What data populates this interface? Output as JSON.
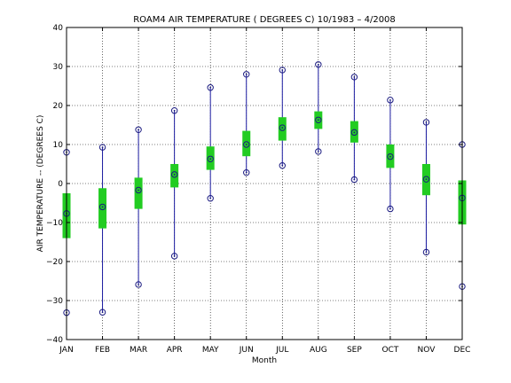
{
  "chart_data": {
    "type": "boxplot",
    "title": "ROAM4  AIR TEMPERATURE ( DEGREES C) 10/1983 – 4/2008",
    "xlabel": "Month",
    "ylabel": "AIR TEMPERATURE -- (DEGREES C)",
    "ylim": [
      -40,
      40
    ],
    "yticks": [
      -40,
      -30,
      -20,
      -10,
      0,
      10,
      20,
      30,
      40
    ],
    "ytick_labels": [
      "−40",
      "−30",
      "−20",
      "−10",
      "0",
      "10",
      "20",
      "30",
      "40"
    ],
    "grid": true,
    "categories": [
      "JAN",
      "FEB",
      "MAR",
      "APR",
      "MAY",
      "JUN",
      "JUL",
      "AUG",
      "SEP",
      "OCT",
      "NOV",
      "DEC"
    ],
    "max": [
      8.0,
      9.3,
      13.8,
      18.7,
      24.6,
      28.0,
      29.1,
      30.5,
      27.3,
      21.4,
      15.7,
      10.0
    ],
    "q3": [
      -2.5,
      -1.2,
      1.5,
      5.0,
      9.5,
      13.5,
      17.0,
      18.5,
      16.0,
      10.0,
      5.0,
      0.8
    ],
    "median": [
      -7.7,
      -6.0,
      -1.7,
      2.3,
      6.3,
      10.0,
      14.3,
      16.3,
      13.1,
      6.9,
      1.1,
      -3.7
    ],
    "q1": [
      -14.0,
      -11.5,
      -6.5,
      -1.0,
      3.5,
      7.0,
      11.0,
      14.0,
      10.5,
      4.0,
      -3.0,
      -10.5
    ],
    "min": [
      -33.1,
      -33.0,
      -25.9,
      -18.6,
      -3.8,
      2.8,
      4.6,
      8.2,
      1.0,
      -6.5,
      -17.6,
      -26.4
    ],
    "colors": {
      "whisker": "#1a1aa0",
      "box": "#22cc22",
      "marker": "#1a1a80",
      "grid": "#000000"
    }
  }
}
